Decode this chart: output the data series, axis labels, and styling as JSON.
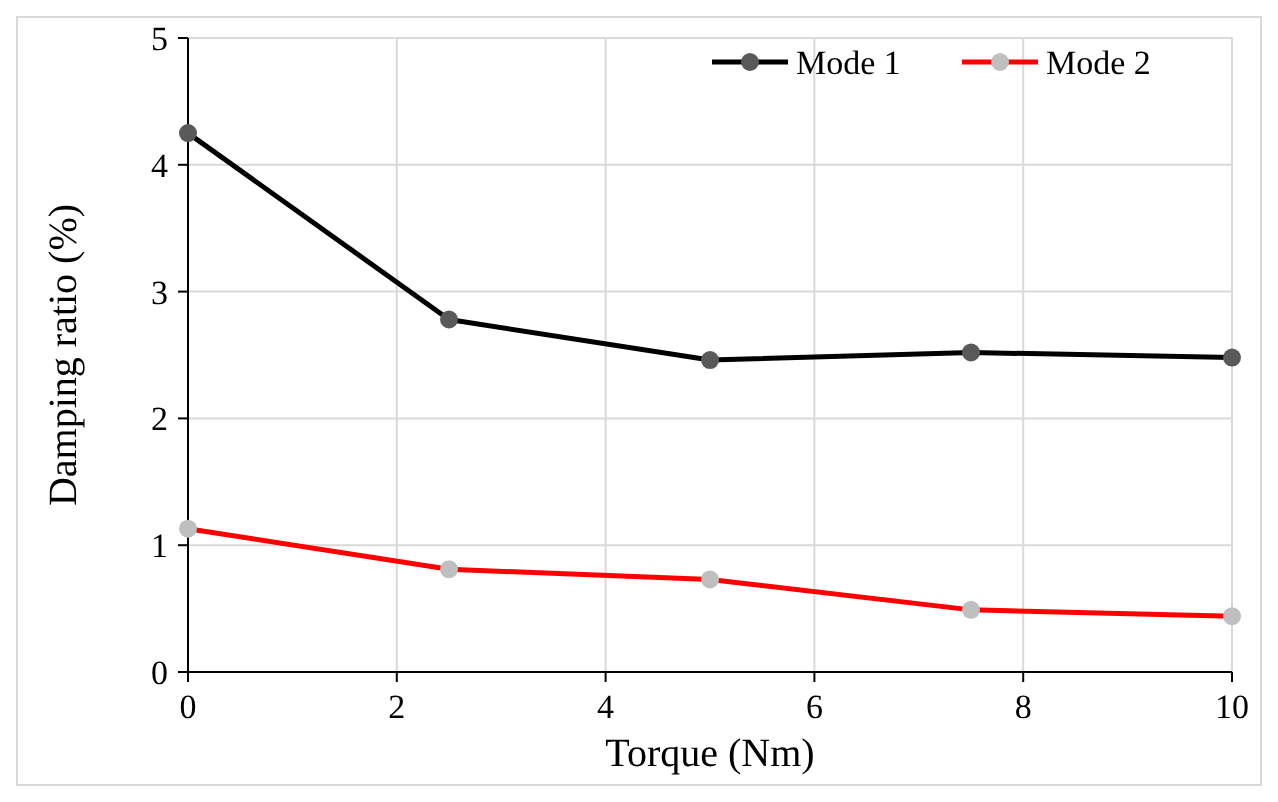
{
  "chart_data": {
    "type": "line",
    "xlabel": "Torque (Nm)",
    "ylabel": "Damping ratio (%)",
    "x": [
      0,
      2.5,
      5,
      7.5,
      10
    ],
    "series": [
      {
        "name": "Mode 1",
        "color": "#000000",
        "values": [
          4.25,
          2.78,
          2.46,
          2.52,
          2.48
        ]
      },
      {
        "name": "Mode 2",
        "color": "#ff0000",
        "values": [
          1.13,
          0.81,
          0.73,
          0.49,
          0.44
        ]
      }
    ],
    "xlim": [
      0,
      10
    ],
    "xticks": [
      0,
      2,
      4,
      6,
      8,
      10
    ],
    "ylim": [
      0,
      5
    ],
    "yticks": [
      0,
      1,
      2,
      3,
      4,
      5
    ],
    "grid": true,
    "legend": "top right",
    "marker": "circle"
  }
}
